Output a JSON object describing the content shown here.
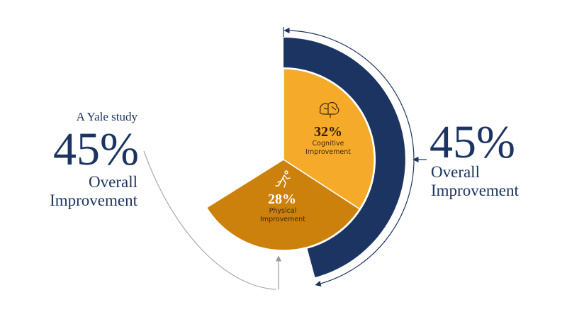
{
  "left": {
    "caption": "A Yale study",
    "value": "45%",
    "label_line1": "Overall",
    "label_line2": "Improvement"
  },
  "right": {
    "value": "45%",
    "label_line1": "Overall",
    "label_line2": "Improvement"
  },
  "segments": [
    {
      "value": "32%",
      "label_line1": "Cognitive",
      "label_line2": "Improvement"
    },
    {
      "value": "28%",
      "label_line1": "Physical",
      "label_line2": "Improvement"
    }
  ]
}
